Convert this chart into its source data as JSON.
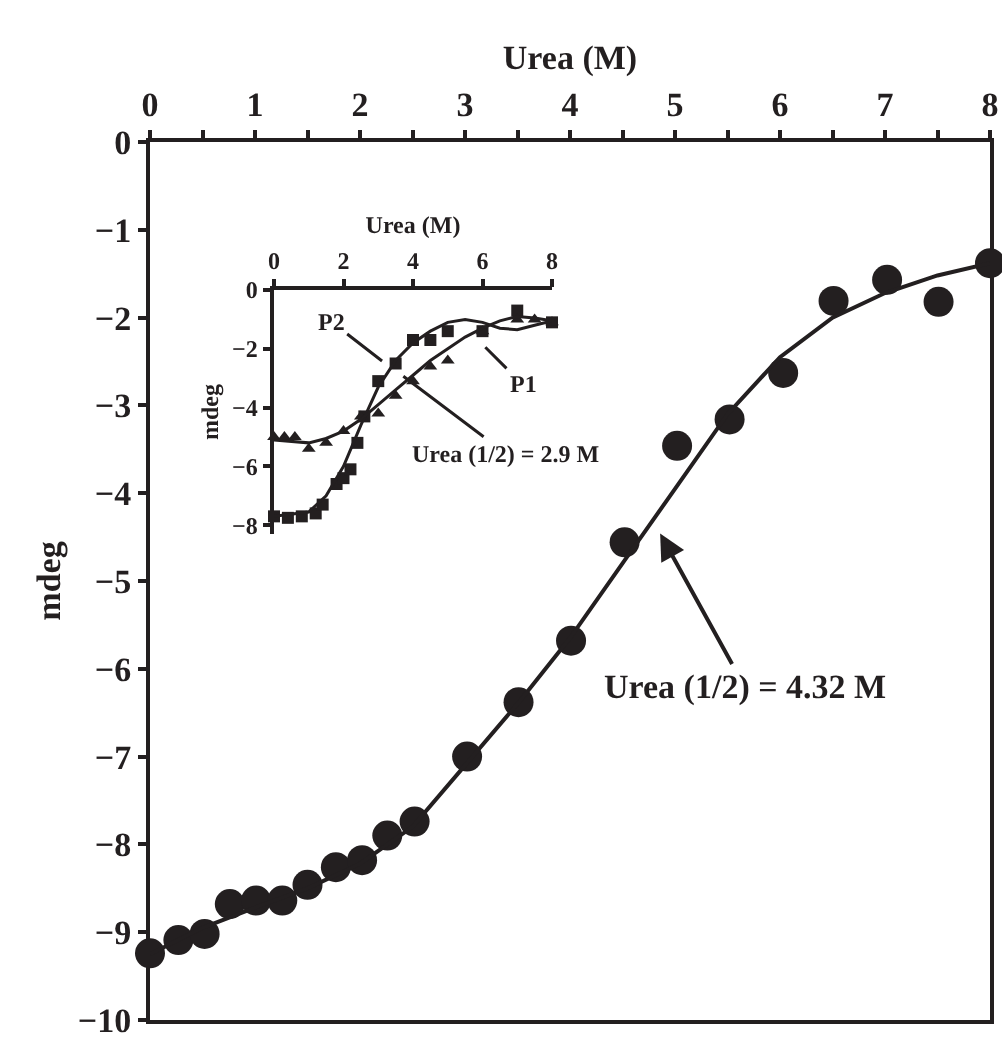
{
  "chart_data": [
    {
      "type": "scatter",
      "xlabel": "Urea (M)",
      "ylabel": "mdeg",
      "xlim": [
        0,
        8
      ],
      "xticks": [
        0,
        {
          "value": 0.5,
          "label": null
        },
        1,
        {
          "value": 1.5,
          "label": null
        },
        2,
        {
          "value": 2.5,
          "label": null
        },
        3,
        {
          "value": 3.5,
          "label": null
        },
        4,
        {
          "value": 4.5,
          "label": null
        },
        5,
        {
          "value": 5.5,
          "label": null
        },
        6,
        {
          "value": 6.5,
          "label": null
        },
        7,
        {
          "value": 7.5,
          "label": null
        },
        8
      ],
      "ylim": [
        -10,
        0
      ],
      "yticks": [
        0,
        -1,
        -2,
        -3,
        -4,
        -5,
        -6,
        -7,
        -8,
        -9,
        -10
      ],
      "grid": false,
      "series": [
        {
          "marker": "circle",
          "color": "#231f20",
          "x": [
            0,
            0.27,
            0.52,
            0.76,
            1.01,
            1.26,
            1.5,
            1.77,
            2.02,
            2.26,
            2.52,
            3.02,
            3.51,
            4.01,
            4.52,
            5.02,
            5.52,
            6.03,
            6.51,
            7.02,
            7.51,
            8.0
          ],
          "values": [
            -9.24,
            -9.09,
            -9.02,
            -8.68,
            -8.64,
            -8.64,
            -8.46,
            -8.26,
            -8.18,
            -7.9,
            -7.74,
            -7.0,
            -6.38,
            -5.68,
            -4.56,
            -3.46,
            -3.16,
            -2.63,
            -1.81,
            -1.57,
            -1.82,
            -1.38
          ]
        },
        {
          "type": "line",
          "marker": "none",
          "color": "#231f20",
          "x": [
            0,
            0.5,
            1,
            1.5,
            2,
            2.5,
            3,
            3.5,
            4,
            4.5,
            5,
            5.5,
            6,
            6.5,
            7,
            7.5,
            8
          ],
          "values": [
            -9.25,
            -8.95,
            -8.72,
            -8.5,
            -8.22,
            -7.8,
            -7.1,
            -6.4,
            -5.65,
            -4.8,
            -3.95,
            -3.1,
            -2.45,
            -2.0,
            -1.72,
            -1.52,
            -1.38
          ]
        }
      ],
      "annotations": [
        {
          "text": "Urea (1/2) = 4.32 M",
          "x": 4.84,
          "y": -4.42
        }
      ]
    },
    {
      "type": "scatter",
      "xlabel": "Urea (M)",
      "ylabel": "mdeg",
      "xlim": [
        0,
        8
      ],
      "xticks": [
        0,
        2,
        4,
        6,
        8
      ],
      "ylim": [
        -8.3,
        0
      ],
      "yticks": [
        0,
        -2,
        -4,
        -6,
        -8
      ],
      "grid": false,
      "series": [
        {
          "marker": "square",
          "color": "#231f20",
          "x": [
            0,
            0.4,
            0.8,
            1.2,
            1.4,
            1.8,
            2.0,
            2.2,
            2.4,
            2.6,
            3.0,
            3.5,
            4.0,
            4.5,
            5.0,
            6.0,
            7.0,
            8.0
          ],
          "values": [
            -7.7,
            -7.75,
            -7.7,
            -7.6,
            -7.3,
            -6.6,
            -6.4,
            -6.1,
            -5.2,
            -4.3,
            -3.1,
            -2.5,
            -1.7,
            -1.7,
            -1.4,
            -1.4,
            -0.7,
            -1.1
          ]
        },
        {
          "marker": "triangle",
          "color": "#231f20",
          "x": [
            0,
            0.3,
            0.6,
            1.0,
            1.5,
            2.0,
            2.5,
            3.0,
            3.5,
            4.0,
            4.5,
            5.0,
            6.0,
            7.0,
            7.5,
            8.0
          ],
          "values": [
            -5.0,
            -5.0,
            -5.0,
            -5.4,
            -5.2,
            -4.8,
            -4.3,
            -4.2,
            -3.6,
            -3.1,
            -2.6,
            -2.4,
            -1.4,
            -1.0,
            -1.0,
            -1.1
          ]
        },
        {
          "type": "line",
          "marker": "none",
          "color": "#231f20",
          "x": [
            0,
            1,
            1.5,
            2,
            2.5,
            3,
            3.5,
            4,
            4.5,
            5,
            5.5,
            6,
            6.5,
            7,
            7.5,
            8
          ],
          "values": [
            -7.7,
            -7.55,
            -7.0,
            -6.0,
            -4.6,
            -3.3,
            -2.4,
            -1.8,
            -1.4,
            -1.1,
            -1.0,
            -1.1,
            -1.3,
            -1.35,
            -1.2,
            -1.05
          ]
        },
        {
          "type": "line",
          "marker": "none",
          "color": "#231f20",
          "x": [
            0,
            1,
            1.5,
            2,
            2.5,
            3,
            3.5,
            4,
            4.5,
            5,
            5.5,
            6,
            6.5,
            7,
            7.5,
            8
          ],
          "values": [
            -5.1,
            -5.2,
            -5.05,
            -4.8,
            -4.4,
            -3.9,
            -3.4,
            -2.9,
            -2.4,
            -2.0,
            -1.6,
            -1.3,
            -1.05,
            -0.9,
            -0.95,
            -1.05
          ]
        }
      ],
      "annotations": [
        {
          "text": "P2",
          "x": 3.2,
          "y": -2.5
        },
        {
          "text": "P1",
          "x": 6.0,
          "y": -1.85
        },
        {
          "text": "Urea (1/2) = 2.9 M",
          "x": 3.63,
          "y": -2.85
        }
      ]
    }
  ]
}
